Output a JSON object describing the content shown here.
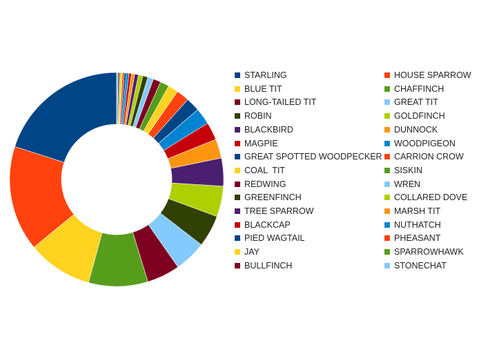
{
  "chart_data": {
    "type": "pie",
    "donut": true,
    "title": "",
    "legend_position": "right",
    "slices": [
      {
        "label": "STARLING",
        "value": 20.8,
        "color": "#004586"
      },
      {
        "label": "HOUSE SPARROW",
        "value": 16.5,
        "color": "#ff420e"
      },
      {
        "label": "BLUE TIT",
        "value": 10.2,
        "color": "#ffd320"
      },
      {
        "label": "CHAFFINCH",
        "value": 9.3,
        "color": "#579d1c"
      },
      {
        "label": "LONG-TAILED TIT",
        "value": 5.2,
        "color": "#7e0021"
      },
      {
        "label": "GREAT TIT",
        "value": 5.0,
        "color": "#83caff"
      },
      {
        "label": "ROBIN",
        "value": 5.0,
        "color": "#314004"
      },
      {
        "label": "GOLDFINCH",
        "value": 4.8,
        "color": "#aecf00"
      },
      {
        "label": "BLACKBIRD",
        "value": 4.4,
        "color": "#4b1f6f"
      },
      {
        "label": "DUNNOCK",
        "value": 3.0,
        "color": "#ff950e"
      },
      {
        "label": "MAGPIE",
        "value": 2.8,
        "color": "#c5000b"
      },
      {
        "label": "WOODPIGEON",
        "value": 2.6,
        "color": "#0084d1"
      },
      {
        "label": "GREAT SPOTTED WOODPECKER",
        "value": 2.2,
        "color": "#004586"
      },
      {
        "label": "CARRION CROW",
        "value": 2.0,
        "color": "#ff420e"
      },
      {
        "label": "COAL  TIT",
        "value": 1.6,
        "color": "#ffd320"
      },
      {
        "label": "SISKIN",
        "value": 1.4,
        "color": "#579d1c"
      },
      {
        "label": "REDWING",
        "value": 1.2,
        "color": "#7e0021"
      },
      {
        "label": "WREN",
        "value": 0.9,
        "color": "#83caff"
      },
      {
        "label": "GREENFINCH",
        "value": 0.8,
        "color": "#314004"
      },
      {
        "label": "COLLARED DOVE",
        "value": 0.7,
        "color": "#aecf00"
      },
      {
        "label": "TREE SPARROW",
        "value": 0.6,
        "color": "#4b1f6f"
      },
      {
        "label": "MARSH TIT",
        "value": 0.5,
        "color": "#ff950e"
      },
      {
        "label": "BLACKCAP",
        "value": 0.4,
        "color": "#c5000b"
      },
      {
        "label": "NUTHATCH",
        "value": 0.4,
        "color": "#0084d1"
      },
      {
        "label": "PIED WAGTAIL",
        "value": 0.3,
        "color": "#004586"
      },
      {
        "label": "PHEASANT",
        "value": 0.3,
        "color": "#ff420e"
      },
      {
        "label": "JAY",
        "value": 0.3,
        "color": "#ffd320"
      },
      {
        "label": "SPARROWHAWK",
        "value": 0.2,
        "color": "#579d1c"
      },
      {
        "label": "BULLFINCH",
        "value": 0.2,
        "color": "#7e0021"
      },
      {
        "label": "STONECHAT",
        "value": 0.2,
        "color": "#83caff"
      }
    ]
  }
}
